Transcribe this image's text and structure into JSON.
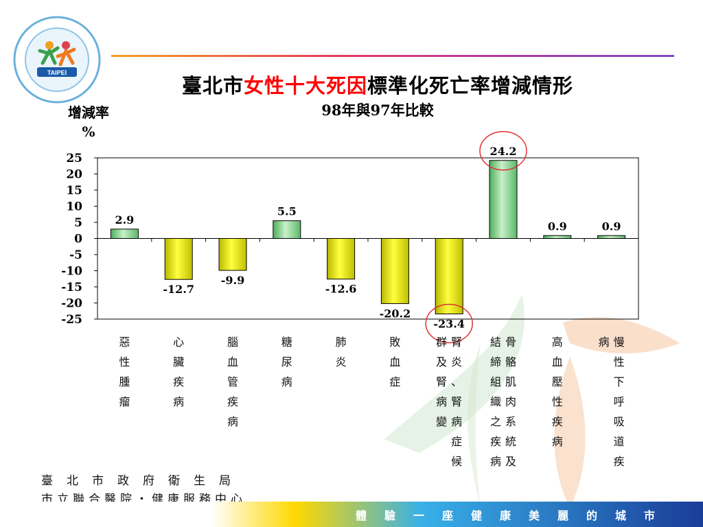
{
  "header": {
    "title_pre": "臺北市",
    "title_highlight": "女性十大死因",
    "title_post": "標準化死亡率增減情形",
    "subtitle": "98年與97年比較"
  },
  "chart_data": {
    "type": "bar",
    "title": "臺北市女性十大死因標準化死亡率增減情形",
    "subtitle": "98年與97年比較",
    "ylabel": "增減率\n%",
    "ylabel_line1": "增減率",
    "ylabel_line2": "%",
    "ylim": [
      -25,
      25
    ],
    "yticks": [
      25,
      20,
      15,
      10,
      5,
      0,
      -5,
      -10,
      -15,
      -20,
      -25
    ],
    "grid": false,
    "categories": [
      "惡性腫瘤",
      "心臟疾病",
      "腦血管疾病",
      "糖尿病",
      "肺炎",
      "敗血症",
      "腎炎、腎病症候群及腎病變",
      "骨骼肌肉系統及結締組織之疾病",
      "高血壓性疾病",
      "慢性下呼吸道疾病"
    ],
    "category_columns": [
      [
        "惡性腫瘤"
      ],
      [
        "心臟疾病"
      ],
      [
        "腦血管疾病"
      ],
      [
        "糖尿病"
      ],
      [
        "肺炎"
      ],
      [
        "敗血症"
      ],
      [
        "腎炎、腎病症候",
        "群及腎病變"
      ],
      [
        "骨骼肌肉系統及",
        "結締組織之疾病"
      ],
      [
        "高血壓性疾病"
      ],
      [
        "慢性下呼吸道疾",
        "病"
      ]
    ],
    "values": [
      2.9,
      -12.7,
      -9.9,
      5.5,
      -12.6,
      -20.2,
      -23.4,
      24.2,
      0.9,
      0.9
    ],
    "data_labels": [
      "2.9",
      "-12.7",
      "-9.9",
      "5.5",
      "-12.6",
      "-20.2",
      "-23.4",
      "24.2",
      "0.9",
      "0.9"
    ],
    "highlighted": [
      "-23.4",
      "24.2"
    ],
    "colors": {
      "positive": "#7ed08a",
      "negative": "#e6e600",
      "highlight_circle": "#e03030"
    }
  },
  "footer": {
    "line1": "臺北市政府衛生局",
    "line2": "市立聯合醫院・健康服務中心"
  },
  "slogan": "體驗一座健康美麗的城市"
}
